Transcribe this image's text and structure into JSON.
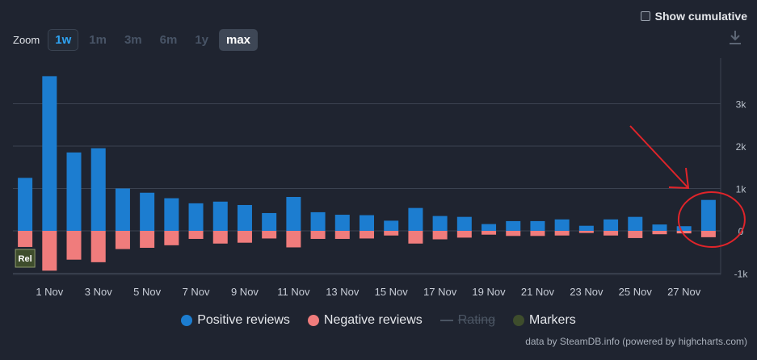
{
  "cumulative": {
    "label": "Show cumulative"
  },
  "zoom": {
    "label": "Zoom",
    "options": [
      "1w",
      "1m",
      "3m",
      "6m",
      "1y",
      "max"
    ]
  },
  "legend": {
    "positive": "Positive reviews",
    "negative": "Negative reviews",
    "rating": "Rating",
    "markers": "Markers"
  },
  "credit": "data by SteamDB.info (powered by highcharts.com)",
  "colors": {
    "positive": "#1c7dd0",
    "negative": "#f07c7c",
    "markers": "#3e4d2c",
    "annotation": "#e0242a"
  },
  "chart_data": {
    "type": "bar",
    "x": [
      "31 Oct",
      "1 Nov",
      "2 Nov",
      "3 Nov",
      "4 Nov",
      "5 Nov",
      "6 Nov",
      "7 Nov",
      "8 Nov",
      "9 Nov",
      "10 Nov",
      "11 Nov",
      "12 Nov",
      "13 Nov",
      "14 Nov",
      "15 Nov",
      "16 Nov",
      "17 Nov",
      "18 Nov",
      "19 Nov",
      "20 Nov",
      "21 Nov",
      "22 Nov",
      "23 Nov",
      "24 Nov",
      "25 Nov",
      "26 Nov",
      "27 Nov",
      "28 Nov"
    ],
    "x_tick_labels": [
      "1 Nov",
      "3 Nov",
      "5 Nov",
      "7 Nov",
      "9 Nov",
      "11 Nov",
      "13 Nov",
      "15 Nov",
      "17 Nov",
      "19 Nov",
      "21 Nov",
      "23 Nov",
      "25 Nov",
      "27 Nov"
    ],
    "series": [
      {
        "name": "Positive reviews",
        "values": [
          1250,
          3650,
          1850,
          1950,
          1000,
          900,
          770,
          650,
          690,
          610,
          420,
          800,
          440,
          380,
          370,
          240,
          540,
          350,
          330,
          160,
          230,
          230,
          270,
          120,
          270,
          330,
          150,
          110,
          730
        ]
      },
      {
        "name": "Negative reviews",
        "values": [
          -380,
          -940,
          -680,
          -740,
          -430,
          -400,
          -340,
          -190,
          -300,
          -280,
          -180,
          -390,
          -190,
          -190,
          -180,
          -110,
          -300,
          -200,
          -160,
          -90,
          -120,
          -120,
          -110,
          -50,
          -110,
          -170,
          -80,
          -60,
          -150
        ]
      }
    ],
    "y_ticks": [
      {
        "v": -1000,
        "label": "-1k"
      },
      {
        "v": 0,
        "label": "0"
      },
      {
        "v": 1000,
        "label": "1k"
      },
      {
        "v": 2000,
        "label": "2k"
      },
      {
        "v": 3000,
        "label": "3k"
      }
    ],
    "ylim": [
      -1000,
      3650
    ],
    "grid": true,
    "markers": [
      {
        "x": "31 Oct",
        "label": "Rel"
      }
    ],
    "legend_position": "bottom-center"
  }
}
